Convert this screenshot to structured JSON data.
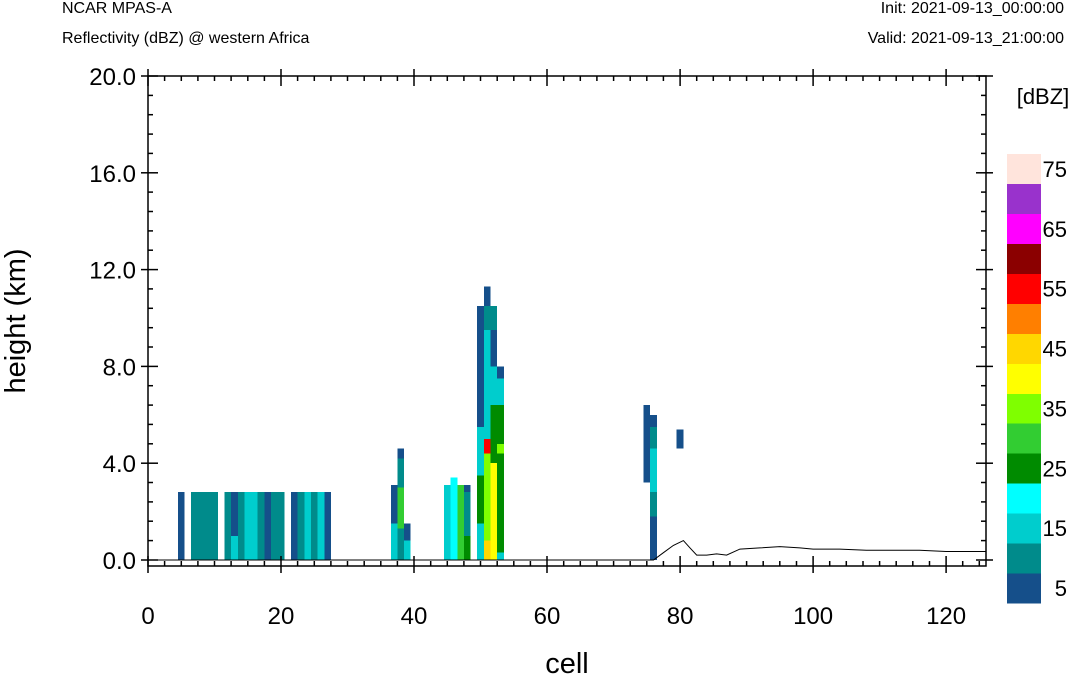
{
  "header": {
    "model": "NCAR MPAS-A",
    "field": "Reflectivity (dBZ) @ western Africa",
    "init": "Init: 2021-09-13_00:00:00",
    "valid": "Valid: 2021-09-13_21:00:00"
  },
  "chart_data": {
    "type": "heatmap",
    "title": "Reflectivity (dBZ) @ western Africa",
    "xlabel": "cell",
    "ylabel": "height (km)",
    "xlim": [
      0,
      126
    ],
    "ylim": [
      -0.25,
      20.0
    ],
    "xticks": [
      0,
      20,
      40,
      60,
      80,
      100,
      120
    ],
    "xtick_labels": [
      "0",
      "20",
      "40",
      "60",
      "80",
      "100",
      "120"
    ],
    "yticks": [
      0,
      4,
      8,
      12,
      16,
      20
    ],
    "ytick_labels": [
      "0.0",
      "4.0",
      "8.0",
      "12.0",
      "16.0",
      "20.0"
    ],
    "colorbar": {
      "unit": "[dBZ]",
      "levels": [
        5,
        10,
        15,
        20,
        25,
        30,
        35,
        40,
        45,
        50,
        55,
        60,
        65,
        70,
        75
      ],
      "colors": [
        "#154f8a",
        "#008b8b",
        "#00cdcd",
        "#00ffff",
        "#008b00",
        "#32cd32",
        "#7fff00",
        "#ffff00",
        "#ffd700",
        "#ff7f00",
        "#ff0000",
        "#8b0000",
        "#ff00ff",
        "#9932cc",
        "#ffe4dc"
      ],
      "labels": [
        "5",
        "15",
        "25",
        "35",
        "45",
        "55",
        "65",
        "75"
      ]
    },
    "cells": [
      {
        "x0": 4.5,
        "x1": 5.5,
        "segs": [
          [
            0,
            2.8,
            5
          ]
        ]
      },
      {
        "x0": 6.5,
        "x1": 10.5,
        "segs": [
          [
            0,
            2.8,
            10
          ]
        ]
      },
      {
        "x0": 11.5,
        "x1": 12.5,
        "segs": [
          [
            0,
            2.8,
            10
          ]
        ]
      },
      {
        "x0": 12.5,
        "x1": 13.5,
        "segs": [
          [
            0,
            1.0,
            15
          ],
          [
            1.0,
            2.8,
            5
          ]
        ]
      },
      {
        "x0": 13.5,
        "x1": 14.5,
        "segs": [
          [
            0,
            2.8,
            10
          ]
        ]
      },
      {
        "x0": 14.5,
        "x1": 15.5,
        "segs": [
          [
            0,
            2.8,
            15
          ]
        ]
      },
      {
        "x0": 15.5,
        "x1": 16.5,
        "segs": [
          [
            0,
            2.8,
            15
          ]
        ]
      },
      {
        "x0": 16.5,
        "x1": 17.5,
        "segs": [
          [
            0,
            2.8,
            10
          ]
        ]
      },
      {
        "x0": 17.5,
        "x1": 18.5,
        "segs": [
          [
            0,
            2.8,
            5
          ]
        ]
      },
      {
        "x0": 18.5,
        "x1": 20.5,
        "segs": [
          [
            0,
            2.8,
            10
          ]
        ]
      },
      {
        "x0": 21.5,
        "x1": 22.5,
        "segs": [
          [
            0,
            2.8,
            5
          ]
        ]
      },
      {
        "x0": 22.5,
        "x1": 23.5,
        "segs": [
          [
            0,
            2.8,
            10
          ]
        ]
      },
      {
        "x0": 23.5,
        "x1": 24.5,
        "segs": [
          [
            0,
            2.8,
            15
          ]
        ]
      },
      {
        "x0": 24.5,
        "x1": 25.5,
        "segs": [
          [
            0,
            2.8,
            10
          ]
        ]
      },
      {
        "x0": 25.5,
        "x1": 26.5,
        "segs": [
          [
            0,
            2.8,
            15
          ]
        ]
      },
      {
        "x0": 26.5,
        "x1": 27.5,
        "segs": [
          [
            0,
            2.8,
            5
          ]
        ]
      },
      {
        "x0": 36.5,
        "x1": 37.5,
        "segs": [
          [
            0,
            1.5,
            15
          ],
          [
            1.5,
            3.1,
            5
          ]
        ]
      },
      {
        "x0": 37.5,
        "x1": 38.5,
        "segs": [
          [
            0,
            1.3,
            10
          ],
          [
            1.3,
            3.0,
            30
          ],
          [
            3.0,
            4.2,
            10
          ],
          [
            4.2,
            4.6,
            5
          ]
        ]
      },
      {
        "x0": 38.5,
        "x1": 39.5,
        "segs": [
          [
            0,
            0.8,
            15
          ],
          [
            0.8,
            1.5,
            5
          ]
        ]
      },
      {
        "x0": 44.5,
        "x1": 45.5,
        "segs": [
          [
            0,
            3.1,
            15
          ]
        ]
      },
      {
        "x0": 45.5,
        "x1": 46.5,
        "segs": [
          [
            0,
            3.4,
            20
          ]
        ]
      },
      {
        "x0": 46.5,
        "x1": 47.5,
        "segs": [
          [
            0,
            3.1,
            30
          ]
        ]
      },
      {
        "x0": 47.5,
        "x1": 48.5,
        "segs": [
          [
            0,
            1.0,
            25
          ],
          [
            1.0,
            2.8,
            10
          ],
          [
            2.8,
            3.1,
            5
          ]
        ]
      },
      {
        "x0": 49.5,
        "x1": 50.5,
        "segs": [
          [
            0,
            1.5,
            15
          ],
          [
            1.5,
            3.5,
            25
          ],
          [
            3.5,
            5.5,
            15
          ],
          [
            5.5,
            10.5,
            5
          ]
        ]
      },
      {
        "x0": 50.5,
        "x1": 51.5,
        "segs": [
          [
            0,
            0.8,
            45
          ],
          [
            0.8,
            4.4,
            35
          ],
          [
            4.4,
            5.0,
            55
          ],
          [
            5.0,
            9.5,
            15
          ],
          [
            9.5,
            10.5,
            10
          ],
          [
            10.5,
            11.3,
            5
          ]
        ]
      },
      {
        "x0": 51.5,
        "x1": 52.5,
        "segs": [
          [
            0,
            4.0,
            40
          ],
          [
            4.0,
            6.4,
            25
          ],
          [
            6.4,
            8.0,
            15
          ],
          [
            8.0,
            9.5,
            5
          ],
          [
            9.5,
            10.5,
            10
          ]
        ]
      },
      {
        "x0": 52.5,
        "x1": 53.5,
        "segs": [
          [
            0,
            0.3,
            15
          ],
          [
            0.3,
            4.4,
            25
          ],
          [
            4.4,
            4.8,
            35
          ],
          [
            4.8,
            6.4,
            25
          ],
          [
            6.4,
            7.5,
            15
          ],
          [
            7.5,
            8.0,
            5
          ]
        ]
      },
      {
        "x0": 74.5,
        "x1": 75.5,
        "segs": [
          [
            3.2,
            6.4,
            5
          ]
        ]
      },
      {
        "x0": 75.5,
        "x1": 76.5,
        "segs": [
          [
            0,
            1.8,
            5
          ],
          [
            1.8,
            2.8,
            10
          ],
          [
            2.8,
            4.6,
            15
          ],
          [
            4.6,
            5.5,
            10
          ],
          [
            5.5,
            6.0,
            5
          ]
        ]
      },
      {
        "x0": 79.5,
        "x1": 80.5,
        "segs": [
          [
            4.6,
            5.4,
            5
          ]
        ]
      }
    ],
    "terrain": [
      [
        0,
        0
      ],
      [
        76,
        0
      ],
      [
        77.5,
        0.3
      ],
      [
        79,
        0.6
      ],
      [
        80.5,
        0.8
      ],
      [
        81.5,
        0.5
      ],
      [
        82.5,
        0.2
      ],
      [
        84,
        0.2
      ],
      [
        85.5,
        0.25
      ],
      [
        87,
        0.2
      ],
      [
        89,
        0.45
      ],
      [
        92,
        0.5
      ],
      [
        95,
        0.55
      ],
      [
        98,
        0.5
      ],
      [
        100,
        0.45
      ],
      [
        104,
        0.45
      ],
      [
        108,
        0.4
      ],
      [
        112,
        0.4
      ],
      [
        116,
        0.4
      ],
      [
        120,
        0.35
      ],
      [
        123,
        0.35
      ],
      [
        126,
        0.35
      ]
    ]
  }
}
